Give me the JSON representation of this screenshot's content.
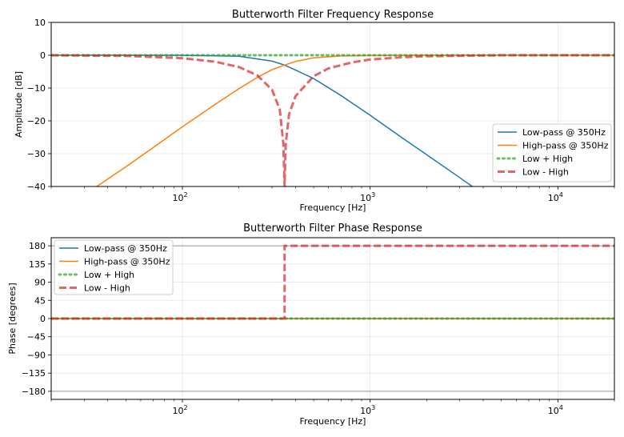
{
  "chart_data": [
    {
      "type": "line",
      "title": "Butterworth Filter Frequency Response",
      "xlabel": "Frequency [Hz]",
      "ylabel": "Amplitude [dB]",
      "xscale": "log",
      "xlim": [
        20,
        20000
      ],
      "ylim": [
        -40,
        10
      ],
      "xticks": [
        {
          "value": 100,
          "base": "10",
          "exp": "2"
        },
        {
          "value": 1000,
          "base": "10",
          "exp": "3"
        },
        {
          "value": 10000,
          "base": "10",
          "exp": "4"
        }
      ],
      "yticks": [
        {
          "value": 10,
          "label": "10"
        },
        {
          "value": 0,
          "label": "0"
        },
        {
          "value": -10,
          "label": "−10"
        },
        {
          "value": -20,
          "label": "−20"
        },
        {
          "value": -30,
          "label": "−30"
        },
        {
          "value": -40,
          "label": "−40"
        }
      ],
      "grid": true,
      "legend_position": "lower-right",
      "series": [
        {
          "name": "Low-pass @ 350Hz",
          "color": "#1f77b4",
          "style": "solid",
          "x": [
            20,
            50,
            100,
            200,
            300,
            350,
            400,
            500,
            700,
            1000,
            1500,
            2000,
            3000,
            3500
          ],
          "y": [
            0,
            0,
            -0.02,
            -0.3,
            -1.8,
            -3.0,
            -4.5,
            -7.1,
            -12.3,
            -18.3,
            -25.4,
            -30.3,
            -37.3,
            -40
          ]
        },
        {
          "name": "High-pass @ 350Hz",
          "color": "#ff7f0e",
          "style": "solid",
          "x": [
            35,
            50,
            70,
            100,
            150,
            200,
            250,
            300,
            350,
            400,
            500,
            700,
            1000,
            2000,
            5000,
            20000
          ],
          "y": [
            -40,
            -34.0,
            -28.1,
            -21.8,
            -14.9,
            -10.2,
            -6.8,
            -4.4,
            -3.0,
            -1.9,
            -0.8,
            -0.2,
            -0.1,
            0,
            0,
            0
          ]
        },
        {
          "name": "Low + High",
          "color": "#2ca02c",
          "style": "dotted",
          "x": [
            20,
            100,
            350,
            1000,
            20000
          ],
          "y": [
            0,
            0,
            0,
            0,
            0
          ]
        },
        {
          "name": "Low - High",
          "color": "#d62728",
          "style": "dashed",
          "x": [
            20,
            50,
            100,
            150,
            200,
            250,
            300,
            330,
            345,
            350,
            355,
            370,
            400,
            500,
            600,
            800,
            1000,
            1500,
            2000,
            5000,
            20000
          ],
          "y": [
            0,
            -0.2,
            -0.9,
            -2.0,
            -3.6,
            -6.1,
            -10.5,
            -16.5,
            -27,
            -40,
            -27,
            -18,
            -12.5,
            -6.4,
            -4.0,
            -2.2,
            -1.3,
            -0.6,
            -0.3,
            0,
            0
          ]
        }
      ]
    },
    {
      "type": "line",
      "title": "Butterworth Filter Phase Response",
      "xlabel": "Frequency [Hz]",
      "ylabel": "Phase [degrees]",
      "xscale": "log",
      "xlim": [
        20,
        20000
      ],
      "ylim": [
        -200,
        200
      ],
      "xticks": [
        {
          "value": 100,
          "base": "10",
          "exp": "2"
        },
        {
          "value": 1000,
          "base": "10",
          "exp": "3"
        },
        {
          "value": 10000,
          "base": "10",
          "exp": "4"
        }
      ],
      "yticks": [
        {
          "value": 180,
          "label": "180"
        },
        {
          "value": 135,
          "label": "135"
        },
        {
          "value": 90,
          "label": "90"
        },
        {
          "value": 45,
          "label": "45"
        },
        {
          "value": 0,
          "label": "0"
        },
        {
          "value": -45,
          "label": "−45"
        },
        {
          "value": -90,
          "label": "−90"
        },
        {
          "value": -135,
          "label": "−135"
        },
        {
          "value": -180,
          "label": "−180"
        }
      ],
      "reference_lines": [
        180,
        -180
      ],
      "grid": true,
      "legend_position": "upper-left",
      "series": [
        {
          "name": "Low-pass @ 350Hz",
          "color": "#1f77b4",
          "style": "solid",
          "x": [
            20,
            20000
          ],
          "y": [
            0,
            0
          ]
        },
        {
          "name": "High-pass @ 350Hz",
          "color": "#ff7f0e",
          "style": "solid",
          "x": [
            20,
            20000
          ],
          "y": [
            0,
            0
          ]
        },
        {
          "name": "Low + High",
          "color": "#2ca02c",
          "style": "dotted",
          "x": [
            20,
            20000
          ],
          "y": [
            0,
            0
          ]
        },
        {
          "name": "Low - High",
          "color": "#d62728",
          "style": "dashed",
          "x": [
            20,
            350,
            350,
            20000
          ],
          "y": [
            0,
            0,
            180,
            180
          ]
        }
      ]
    }
  ]
}
